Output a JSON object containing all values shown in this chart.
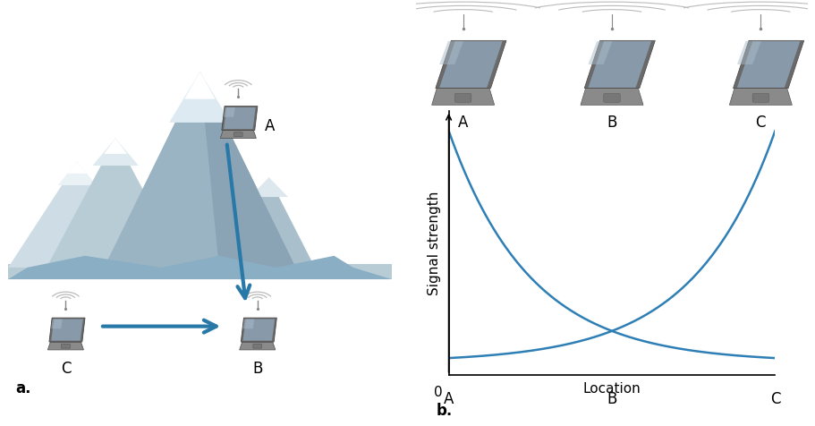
{
  "fig_width": 9.12,
  "fig_height": 4.76,
  "background_color": "#ffffff",
  "panel_a_label": "a.",
  "panel_b_label": "b.",
  "xlabel": "Location",
  "ylabel": "Signal strength",
  "curve_color": "#2e7fb5",
  "curve_linewidth": 1.8,
  "arrow_color": "#2878a8",
  "label_A": "A",
  "label_B": "B",
  "label_C": "C",
  "zero_label": "0",
  "label_fontsize": 12,
  "axis_label_fontsize": 11,
  "panel_label_fontsize": 12,
  "mountain_colors": [
    "#c8d8e0",
    "#b0c4d0",
    "#98b0c0",
    "#d8e4ea",
    "#e8f0f4",
    "#f0f4f6"
  ],
  "laptop_body_color": "#888888",
  "laptop_screen_color": "#99aaaa",
  "laptop_base_color": "#777777",
  "wifi_color": "#aaaaaa"
}
